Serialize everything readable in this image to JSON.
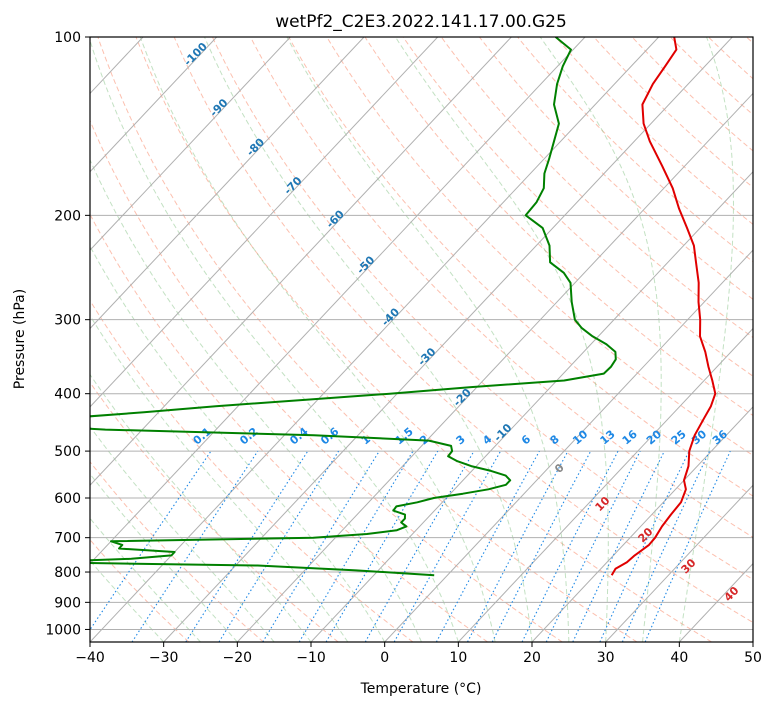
{
  "chart_data": {
    "type": "line",
    "title": "wetPf2_C2E3.2022.141.17.00.G25",
    "xlabel": "Temperature (°C)",
    "ylabel": "Pressure (hPa)",
    "xlim": [
      -40,
      50
    ],
    "ylim": [
      1050,
      100
    ],
    "y_scale": "log",
    "grid": true,
    "x_ticks": [
      -40,
      -30,
      -20,
      -10,
      0,
      10,
      20,
      30,
      40,
      50
    ],
    "y_ticks": [
      100,
      200,
      300,
      400,
      500,
      600,
      700,
      800,
      900,
      1000
    ],
    "colors": {
      "temperature": "#e00000",
      "dewpoint": "#008000",
      "grid": "#b0b0b0",
      "dry_adiabat": "#fa8c6e",
      "moist_adiabat": "#88c488",
      "mixing_ratio": "#1e88e5",
      "isotherm_labels": "#1f77b4",
      "dry_adiabat_labels": "#d62728"
    },
    "isotherm_labels": [
      "-100",
      "-90",
      "-80",
      "-70",
      "-60",
      "-50",
      "-40",
      "-30",
      "-20",
      "-10",
      "0",
      "10",
      "20",
      "30",
      "40"
    ],
    "mixing_ratio_labels": [
      "0.1",
      "0.2",
      "0.4",
      "0.6",
      "1",
      "1.5",
      "2",
      "3",
      "4",
      "6",
      "8",
      "10",
      "13",
      "16",
      "20",
      "25",
      "30",
      "36"
    ],
    "series": [
      {
        "key": "temperature",
        "p": [
          810,
          790,
          770,
          750,
          720,
          700,
          670,
          640,
          610,
          580,
          560,
          530,
          500,
          470,
          440,
          420,
          400,
          380,
          360,
          340,
          320,
          300,
          280,
          260,
          240,
          225,
          210,
          195,
          180,
          165,
          150,
          140,
          130,
          120,
          112,
          105,
          100
        ],
        "t": [
          22.3,
          22.0,
          22.7,
          22.9,
          23.5,
          23.4,
          22.9,
          22.6,
          22.4,
          21.4,
          20.0,
          18.8,
          17.0,
          15.7,
          14.8,
          14.2,
          13.2,
          11.1,
          8.8,
          6.5,
          3.8,
          1.7,
          -0.8,
          -3.2,
          -6.2,
          -8.6,
          -11.8,
          -15.3,
          -18.8,
          -23.1,
          -27.9,
          -31.0,
          -33.6,
          -34.8,
          -35.4,
          -36.0,
          -37.9
        ]
      },
      {
        "key": "dewpoint",
        "p": [
          810,
          795,
          780,
          770,
          760,
          750,
          740,
          730,
          720,
          710,
          700,
          690,
          680,
          670,
          660,
          650,
          640,
          630,
          620,
          610,
          600,
          590,
          580,
          570,
          560,
          550,
          540,
          530,
          520,
          510,
          500,
          490,
          480,
          470,
          460,
          450,
          440,
          430,
          420,
          410,
          400,
          390,
          380,
          370,
          360,
          350,
          340,
          330,
          320,
          310,
          300,
          280,
          260,
          250,
          240,
          225,
          210,
          200,
          190,
          180,
          170,
          160,
          150,
          140,
          130,
          120,
          112,
          105,
          100
        ],
        "t": [
          -1.8,
          -13,
          -27,
          -58,
          -45,
          -40,
          -40,
          -48,
          -48,
          -50,
          -23,
          -16.2,
          -12.6,
          -11.8,
          -13,
          -13,
          -13.5,
          -15.6,
          -15.7,
          -13.4,
          -11.7,
          -8.3,
          -5.4,
          -3.6,
          -3.6,
          -4.8,
          -7.4,
          -10.7,
          -13.2,
          -15.1,
          -15.2,
          -16.0,
          -19.7,
          -36.0,
          -65.0,
          -80.0,
          -72.0,
          -62.0,
          -53.0,
          -42.0,
          -31.0,
          -21.0,
          -9.0,
          -4.5,
          -4.4,
          -4.7,
          -5.7,
          -7.9,
          -10.8,
          -13.3,
          -15.3,
          -18.0,
          -20.6,
          -22.8,
          -26.0,
          -28.2,
          -31.4,
          -35.3,
          -35.5,
          -36.3,
          -38.1,
          -39.4,
          -40.9,
          -42.5,
          -45.6,
          -47.8,
          -49.3,
          -50.3,
          -54.0
        ]
      }
    ]
  }
}
